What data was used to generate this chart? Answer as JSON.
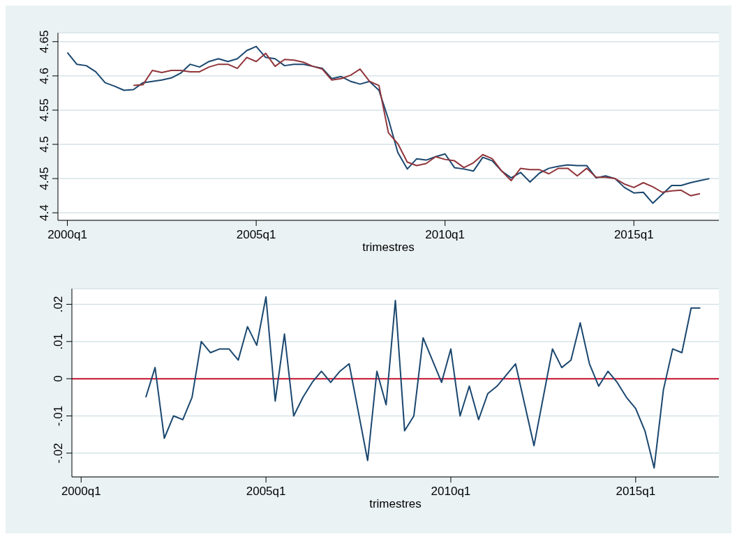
{
  "chart_data": [
    {
      "type": "line",
      "xlabel": "trimestres",
      "categories": [
        "2000q1",
        null,
        null,
        null,
        null,
        null,
        null,
        null,
        null,
        null,
        null,
        null,
        null,
        null,
        null,
        null,
        null,
        null,
        null,
        null,
        "2005q1",
        null,
        null,
        null,
        null,
        null,
        null,
        null,
        null,
        null,
        null,
        null,
        null,
        null,
        null,
        null,
        null,
        null,
        null,
        null,
        "2010q1",
        null,
        null,
        null,
        null,
        null,
        null,
        null,
        null,
        null,
        null,
        null,
        null,
        null,
        null,
        null,
        null,
        null,
        null,
        null,
        "2015q1",
        null,
        null,
        null,
        null,
        null,
        null,
        null,
        null
      ],
      "series": [
        {
          "color": "#1a476f",
          "values": [
            4.634,
            4.617,
            4.615,
            4.606,
            4.59,
            4.585,
            4.579,
            4.58,
            4.59,
            4.592,
            4.594,
            4.597,
            4.604,
            4.617,
            4.613,
            4.621,
            4.625,
            4.621,
            4.625,
            4.637,
            4.643,
            4.627,
            4.625,
            4.615,
            4.617,
            4.617,
            4.614,
            4.611,
            4.596,
            4.599,
            4.592,
            4.588,
            4.592,
            4.579,
            4.537,
            4.488,
            4.464,
            4.479,
            4.477,
            4.482,
            4.486,
            4.466,
            4.464,
            4.461,
            4.481,
            4.476,
            4.461,
            4.451,
            4.459,
            4.445,
            4.458,
            4.465,
            4.468,
            4.47,
            4.469,
            4.469,
            4.451,
            4.454,
            4.45,
            4.437,
            4.429,
            4.43,
            4.414,
            4.427,
            4.44,
            4.44,
            4.444,
            4.447,
            4.45
          ]
        },
        {
          "color": "#90353b",
          "values": [
            null,
            null,
            null,
            null,
            null,
            null,
            null,
            4.586,
            4.587,
            4.608,
            4.605,
            4.608,
            4.608,
            4.606,
            4.606,
            4.613,
            4.617,
            4.617,
            4.611,
            4.627,
            4.621,
            4.633,
            4.614,
            4.624,
            4.623,
            4.62,
            4.614,
            4.61,
            4.594,
            4.596,
            4.601,
            4.61,
            4.592,
            4.586,
            4.517,
            4.501,
            4.474,
            4.469,
            4.472,
            4.482,
            4.478,
            4.476,
            4.466,
            4.473,
            4.485,
            4.479,
            4.461,
            4.447,
            4.465,
            4.463,
            4.463,
            4.457,
            4.465,
            4.465,
            4.454,
            4.465,
            4.452,
            4.452,
            4.45,
            4.442,
            4.437,
            4.444,
            4.438,
            4.43,
            4.432,
            4.433,
            4.425,
            4.428,
            null
          ]
        }
      ],
      "ylim": [
        4.389,
        4.663
      ],
      "yticks": [
        4.4,
        4.45,
        4.5,
        4.55,
        4.6,
        4.65
      ],
      "grid": "y",
      "marker": "none",
      "line_style": "solid"
    },
    {
      "type": "line",
      "xlabel": "trimestres",
      "categories": [
        "2000q1",
        null,
        null,
        null,
        null,
        null,
        null,
        null,
        null,
        null,
        null,
        null,
        null,
        null,
        null,
        null,
        null,
        null,
        null,
        null,
        "2005q1",
        null,
        null,
        null,
        null,
        null,
        null,
        null,
        null,
        null,
        null,
        null,
        null,
        null,
        null,
        null,
        null,
        null,
        null,
        null,
        "2010q1",
        null,
        null,
        null,
        null,
        null,
        null,
        null,
        null,
        null,
        null,
        null,
        null,
        null,
        null,
        null,
        null,
        null,
        null,
        null,
        "2015q1",
        null,
        null,
        null,
        null,
        null,
        null,
        null,
        null
      ],
      "series": [
        {
          "color": "#1a476f",
          "values": [
            null,
            null,
            null,
            null,
            null,
            null,
            null,
            -0.005,
            0.003,
            -0.016,
            -0.01,
            -0.011,
            -0.005,
            0.01,
            0.007,
            0.008,
            0.008,
            0.005,
            0.014,
            0.009,
            0.022,
            -0.006,
            0.012,
            -0.01,
            -0.005,
            -0.001,
            0.002,
            -0.001,
            0.002,
            0.004,
            -0.009,
            -0.022,
            0.002,
            -0.007,
            0.021,
            -0.014,
            -0.01,
            0.011,
            0.005,
            -0.001,
            0.008,
            -0.01,
            -0.002,
            -0.011,
            -0.004,
            -0.002,
            0.001,
            0.004,
            -0.007,
            -0.018,
            -0.005,
            0.008,
            0.003,
            0.005,
            0.015,
            0.004,
            -0.002,
            0.002,
            -0.001,
            -0.005,
            -0.008,
            -0.014,
            -0.024,
            -0.003,
            0.008,
            0.007,
            0.019,
            0.019,
            null
          ]
        }
      ],
      "ylim": [
        -0.0264,
        0.0242
      ],
      "yticks": [
        {
          "value": -0.02,
          "label": "-.02"
        },
        {
          "value": -0.01,
          "label": "-.01"
        },
        {
          "value": 0,
          "label": "0"
        },
        {
          "value": 0.01,
          "label": ".01"
        },
        {
          "value": 0.02,
          "label": ".02"
        }
      ],
      "ref_lines": [
        {
          "axis": "y",
          "value": 0,
          "color": "#c8102e"
        }
      ],
      "grid": "y",
      "marker": "none",
      "line_style": "solid"
    }
  ]
}
